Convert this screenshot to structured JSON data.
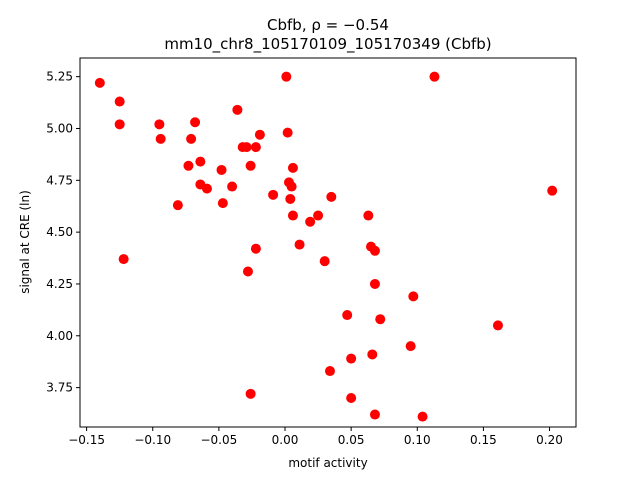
{
  "chart_data": {
    "type": "scatter",
    "title": "Cbfb, ρ = −0.54",
    "subtitle": "mm10_chr8_105170109_105170349 (Cbfb)",
    "xlabel": "motif activity",
    "ylabel": "signal at CRE (ln)",
    "xlim": [
      -0.155,
      0.22
    ],
    "ylim": [
      3.56,
      5.34
    ],
    "xticks": [
      -0.15,
      -0.1,
      -0.05,
      0.0,
      0.05,
      0.1,
      0.15,
      0.2
    ],
    "xtick_labels": [
      "−0.15",
      "−0.10",
      "−0.05",
      "0.00",
      "0.05",
      "0.10",
      "0.15",
      "0.20"
    ],
    "yticks": [
      3.75,
      4.0,
      4.25,
      4.5,
      4.75,
      5.0,
      5.25
    ],
    "ytick_labels": [
      "3.75",
      "4.00",
      "4.25",
      "4.50",
      "4.75",
      "5.00",
      "5.25"
    ],
    "marker_color": "#ff0000",
    "grid": false,
    "points": [
      {
        "x": -0.14,
        "y": 5.22
      },
      {
        "x": -0.125,
        "y": 5.13
      },
      {
        "x": -0.125,
        "y": 5.02
      },
      {
        "x": -0.122,
        "y": 4.37
      },
      {
        "x": -0.095,
        "y": 5.02
      },
      {
        "x": -0.094,
        "y": 4.95
      },
      {
        "x": -0.081,
        "y": 4.63
      },
      {
        "x": -0.073,
        "y": 4.82
      },
      {
        "x": -0.071,
        "y": 4.95
      },
      {
        "x": -0.068,
        "y": 5.03
      },
      {
        "x": -0.064,
        "y": 4.84
      },
      {
        "x": -0.064,
        "y": 4.73
      },
      {
        "x": -0.059,
        "y": 4.71
      },
      {
        "x": -0.048,
        "y": 4.8
      },
      {
        "x": -0.047,
        "y": 4.64
      },
      {
        "x": -0.04,
        "y": 4.72
      },
      {
        "x": -0.036,
        "y": 5.09
      },
      {
        "x": -0.032,
        "y": 4.91
      },
      {
        "x": -0.029,
        "y": 4.91
      },
      {
        "x": -0.028,
        "y": 4.31
      },
      {
        "x": -0.026,
        "y": 4.82
      },
      {
        "x": -0.026,
        "y": 3.72
      },
      {
        "x": -0.022,
        "y": 4.91
      },
      {
        "x": -0.022,
        "y": 4.42
      },
      {
        "x": -0.019,
        "y": 4.97
      },
      {
        "x": -0.009,
        "y": 4.68
      },
      {
        "x": 0.001,
        "y": 5.25
      },
      {
        "x": 0.002,
        "y": 4.98
      },
      {
        "x": 0.003,
        "y": 4.74
      },
      {
        "x": 0.004,
        "y": 4.66
      },
      {
        "x": 0.005,
        "y": 4.72
      },
      {
        "x": 0.006,
        "y": 4.81
      },
      {
        "x": 0.006,
        "y": 4.58
      },
      {
        "x": 0.011,
        "y": 4.44
      },
      {
        "x": 0.019,
        "y": 4.55
      },
      {
        "x": 0.025,
        "y": 4.58
      },
      {
        "x": 0.03,
        "y": 4.36
      },
      {
        "x": 0.035,
        "y": 4.67
      },
      {
        "x": 0.034,
        "y": 3.83
      },
      {
        "x": 0.047,
        "y": 4.1
      },
      {
        "x": 0.05,
        "y": 3.89
      },
      {
        "x": 0.05,
        "y": 3.7
      },
      {
        "x": 0.063,
        "y": 4.58
      },
      {
        "x": 0.065,
        "y": 4.43
      },
      {
        "x": 0.068,
        "y": 4.41
      },
      {
        "x": 0.068,
        "y": 4.25
      },
      {
        "x": 0.066,
        "y": 3.91
      },
      {
        "x": 0.068,
        "y": 3.62
      },
      {
        "x": 0.072,
        "y": 4.08
      },
      {
        "x": 0.095,
        "y": 3.95
      },
      {
        "x": 0.097,
        "y": 4.19
      },
      {
        "x": 0.104,
        "y": 3.61
      },
      {
        "x": 0.113,
        "y": 5.25
      },
      {
        "x": 0.161,
        "y": 4.05
      },
      {
        "x": 0.202,
        "y": 4.7
      }
    ]
  }
}
